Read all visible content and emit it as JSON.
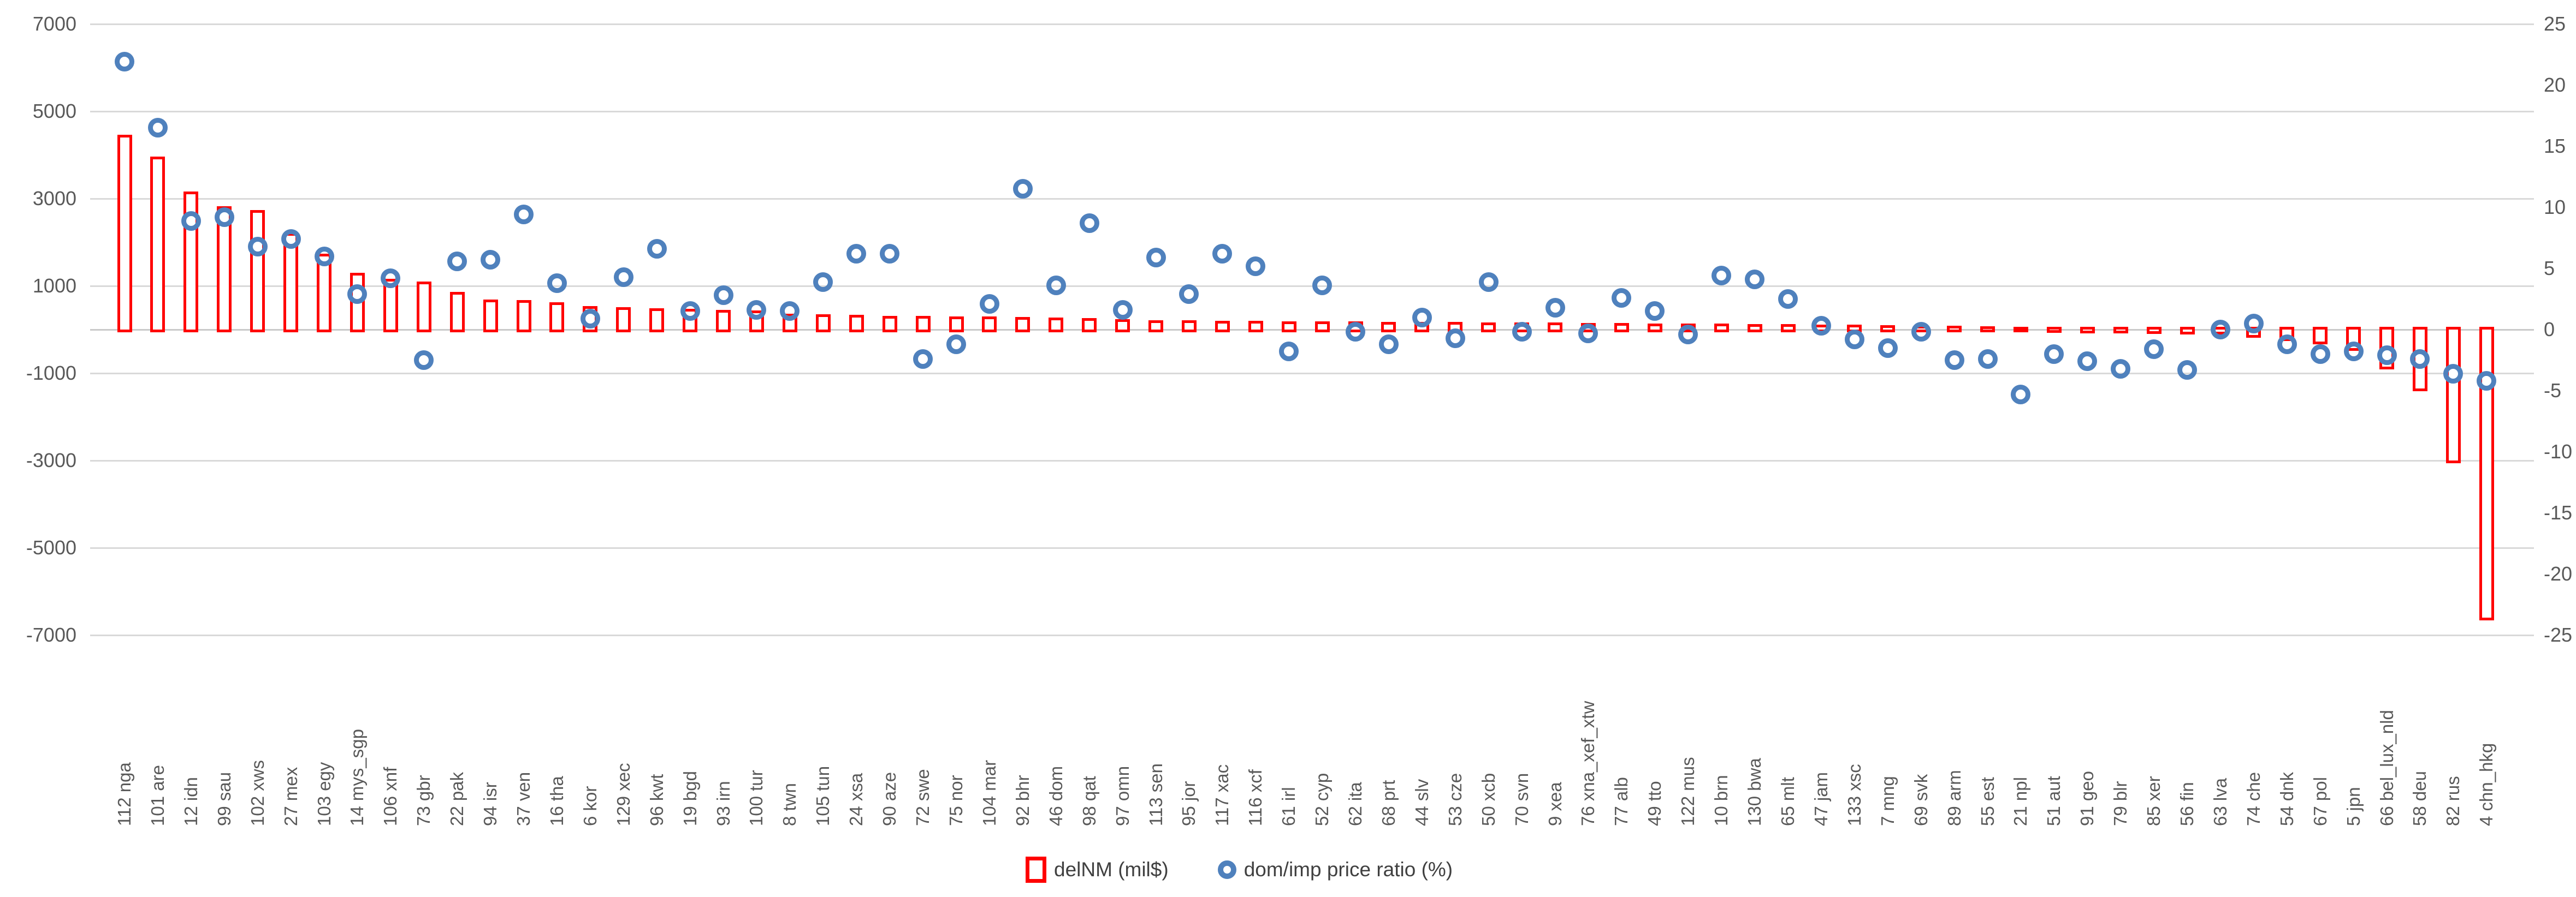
{
  "chart_data": {
    "type": "bar",
    "subtype": "combo-bar-scatter",
    "title": "",
    "xlabel": "",
    "ylabel_left": "",
    "ylabel_right": "",
    "grid": true,
    "legend_position": "bottom-center",
    "categories": [
      "112 nga",
      "101 are",
      "12 idn",
      "99 sau",
      "102 xws",
      "27 mex",
      "103 egy",
      "14 mys_sgp",
      "106 xnf",
      "73 gbr",
      "22 pak",
      "94 isr",
      "37 ven",
      "16 tha",
      "6 kor",
      "129 xec",
      "96 kwt",
      "19 bgd",
      "93 irn",
      "100 tur",
      "8 twn",
      "105 tun",
      "24 xsa",
      "90 aze",
      "72 swe",
      "75 nor",
      "104 mar",
      "92 bhr",
      "46 dom",
      "98 qat",
      "97 omn",
      "113 sen",
      "95 jor",
      "117 xac",
      "116 xcf",
      "61 irl",
      "52 cyp",
      "62 ita",
      "68 prt",
      "44 slv",
      "53 cze",
      "50 xcb",
      "70 svn",
      "9 xea",
      "76 xna_xef_xtw",
      "77 alb",
      "49 tto",
      "122 mus",
      "10 brn",
      "130 bwa",
      "65 mlt",
      "47 jam",
      "133 xsc",
      "7 mng",
      "69 svk",
      "89 arm",
      "55 est",
      "21 npl",
      "51 aut",
      "91 geo",
      "79 blr",
      "85 xer",
      "56 fin",
      "63 lva",
      "74 che",
      "54 dnk",
      "67 pol",
      "5 jpn",
      "66 bel_lux_nld",
      "58 deu",
      "82 rus",
      "4 chn_hkg"
    ],
    "series": [
      {
        "name": "delNM (mil$)",
        "type": "bar",
        "axis": "left",
        "color": "#ff0000",
        "values": [
          4400,
          3900,
          3100,
          2760,
          2670,
          2150,
          1670,
          1240,
          1100,
          1040,
          800,
          620,
          610,
          560,
          480,
          450,
          430,
          410,
          390,
          370,
          300,
          285,
          270,
          255,
          245,
          240,
          235,
          225,
          215,
          205,
          180,
          150,
          145,
          140,
          135,
          130,
          125,
          120,
          115,
          110,
          108,
          105,
          100,
          95,
          90,
          85,
          80,
          75,
          70,
          65,
          60,
          55,
          45,
          40,
          30,
          20,
          10,
          0,
          -10,
          -20,
          -30,
          -40,
          -45,
          -50,
          -120,
          -200,
          -280,
          -420,
          -850,
          -1350,
          -3000,
          -6600
        ]
      },
      {
        "name": "dom/imp price ratio (%)",
        "type": "scatter",
        "axis": "right",
        "color": "#4f81bd",
        "values": [
          21.9,
          16.5,
          8.9,
          9.2,
          6.8,
          7.4,
          6.0,
          2.9,
          4.2,
          -2.5,
          5.6,
          5.7,
          9.4,
          3.8,
          0.9,
          4.3,
          6.6,
          1.5,
          2.8,
          1.6,
          1.5,
          3.9,
          6.2,
          6.2,
          -2.4,
          -1.2,
          2.1,
          11.5,
          3.6,
          8.7,
          1.6,
          5.9,
          2.9,
          6.2,
          5.2,
          -1.8,
          3.6,
          -0.2,
          -1.2,
          1.0,
          -0.7,
          3.9,
          -0.2,
          1.8,
          -0.3,
          2.6,
          1.5,
          -0.4,
          4.4,
          4.1,
          2.5,
          0.3,
          -0.8,
          -1.5,
          -0.2,
          -2.5,
          -2.4,
          -5.3,
          -2.0,
          -2.6,
          -3.2,
          -1.6,
          -3.3,
          0.0,
          0.5,
          -1.2,
          -2.0,
          -1.8,
          -2.1,
          -2.4,
          -3.6,
          -4.2
        ]
      }
    ],
    "left_axis": {
      "ticks": [
        7000,
        5000,
        3000,
        1000,
        -1000,
        -3000,
        -5000,
        -7000
      ],
      "range": [
        -7000,
        7000
      ]
    },
    "right_axis": {
      "ticks": [
        25,
        20,
        15,
        10,
        5,
        0,
        -5,
        -10,
        -15,
        -20,
        -25
      ],
      "range": [
        -25,
        25
      ]
    }
  },
  "legend": {
    "bar_label": "delNM (mil$)",
    "scatter_label": "dom/imp price ratio (%)"
  },
  "colors": {
    "bar_stroke": "#ff0000",
    "scatter_stroke": "#4f81bd",
    "gridline": "#d9d9d9",
    "axis_text": "#595959",
    "background": "#ffffff"
  }
}
